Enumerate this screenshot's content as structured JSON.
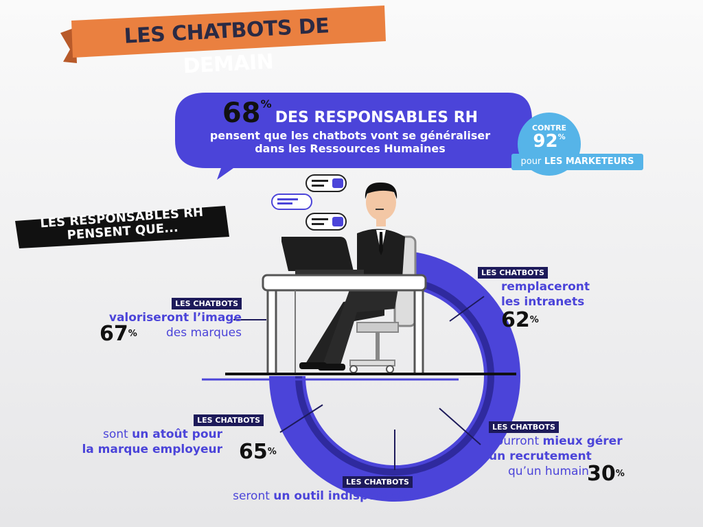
{
  "banner": {
    "title_start": "LES CHATBOTS DE",
    "title_end": "DEMAIN"
  },
  "headline": {
    "value": 68,
    "unit": "%",
    "title": "DES RESPONSABLES RH",
    "lines": [
      "pensent que les chatbots vont se généraliser",
      "dans les Ressources Humaines"
    ]
  },
  "comparison": {
    "prefix": "CONTRE",
    "value": 92,
    "unit": "%",
    "caption_start": "pour",
    "caption_end": "LES MARKETEURS"
  },
  "section_label": [
    "LES RESPONSABLES RH",
    "PENSENT QUE..."
  ],
  "items": [
    {
      "tag": "LES CHATBOTS",
      "lines": [
        [
          {
            "text": "valoriseront l’image",
            "bold": true
          }
        ],
        [
          {
            "text": "des marques",
            "bold": false
          }
        ]
      ],
      "value": 67,
      "unit": "%"
    },
    {
      "tag": "LES CHATBOTS",
      "lines": [
        [
          {
            "text": "remplaceront",
            "bold": true
          }
        ],
        [
          {
            "text": "les intranets",
            "bold": true
          }
        ]
      ],
      "value": 62,
      "unit": "%"
    },
    {
      "tag": "LES CHATBOTS",
      "lines": [
        [
          {
            "text": "pourront ",
            "bold": false
          },
          {
            "text": "mieux gérer",
            "bold": true
          }
        ],
        [
          {
            "text": "un recrutement",
            "bold": true
          }
        ],
        [
          {
            "text": "qu’un humain",
            "bold": false
          }
        ]
      ],
      "value": 30,
      "unit": "%"
    },
    {
      "tag": "LES CHATBOTS",
      "lines": [
        [
          {
            "text": "sont ",
            "bold": false
          },
          {
            "text": "un atoût pour",
            "bold": true
          }
        ],
        [
          {
            "text": "la marque employeur",
            "bold": true
          }
        ]
      ],
      "value": 65,
      "unit": "%"
    },
    {
      "tag": "LES CHATBOTS",
      "lines": [
        [
          {
            "text": "seront ",
            "bold": false
          },
          {
            "text": "un outil indispensable",
            "bold": true
          }
        ]
      ]
    }
  ]
}
